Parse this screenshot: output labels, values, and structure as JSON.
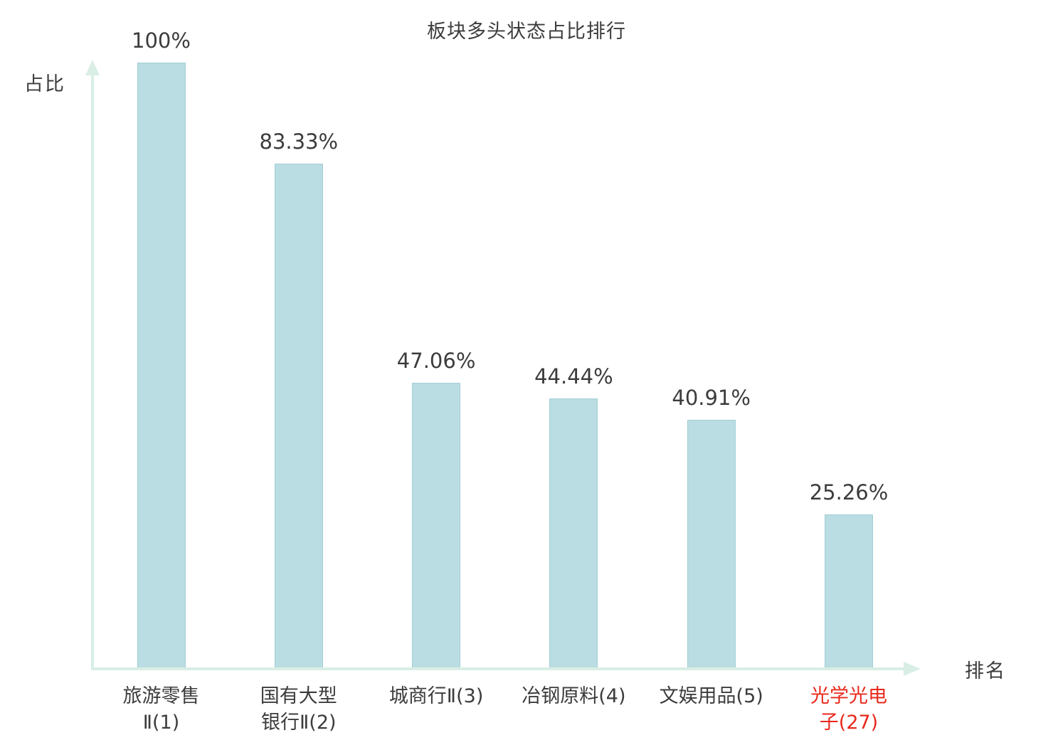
{
  "page": {
    "title": "板块多头状态占比排行"
  },
  "chart_data": {
    "type": "bar",
    "title": "板块多头状态占比排行",
    "xlabel": "排名",
    "ylabel": "占比",
    "categories": [
      "旅游零售Ⅱ(1)",
      "国有大型银行Ⅱ(2)",
      "城商行Ⅱ(3)",
      "冶钢原料(4)",
      "文娱用品(5)",
      "光学光电子(27)"
    ],
    "values": [
      100,
      83.33,
      47.06,
      44.44,
      40.91,
      25.26
    ],
    "value_labels": [
      "100%",
      "83.33%",
      "47.06%",
      "44.44%",
      "40.91%",
      "25.26%"
    ],
    "category_lines": [
      [
        "旅游零售",
        "Ⅱ(1)"
      ],
      [
        "国有大型",
        "银行Ⅱ(2)"
      ],
      [
        "城商行Ⅱ(3)"
      ],
      [
        "冶钢原料(4)"
      ],
      [
        "文娱用品(5)"
      ],
      [
        "光学光电",
        "子(27)"
      ]
    ],
    "ranks": [
      1,
      2,
      3,
      4,
      5,
      27
    ],
    "highlight_index": 5,
    "ylim": [
      0,
      100
    ],
    "grid": false,
    "legend": false,
    "colors": {
      "bar_fill": "#b9dde2",
      "bar_border": "#a3ced6",
      "axis": "#d9eee5",
      "text": "#3c3c3c",
      "highlight": "#e8291c",
      "background": "#ffffff"
    }
  }
}
